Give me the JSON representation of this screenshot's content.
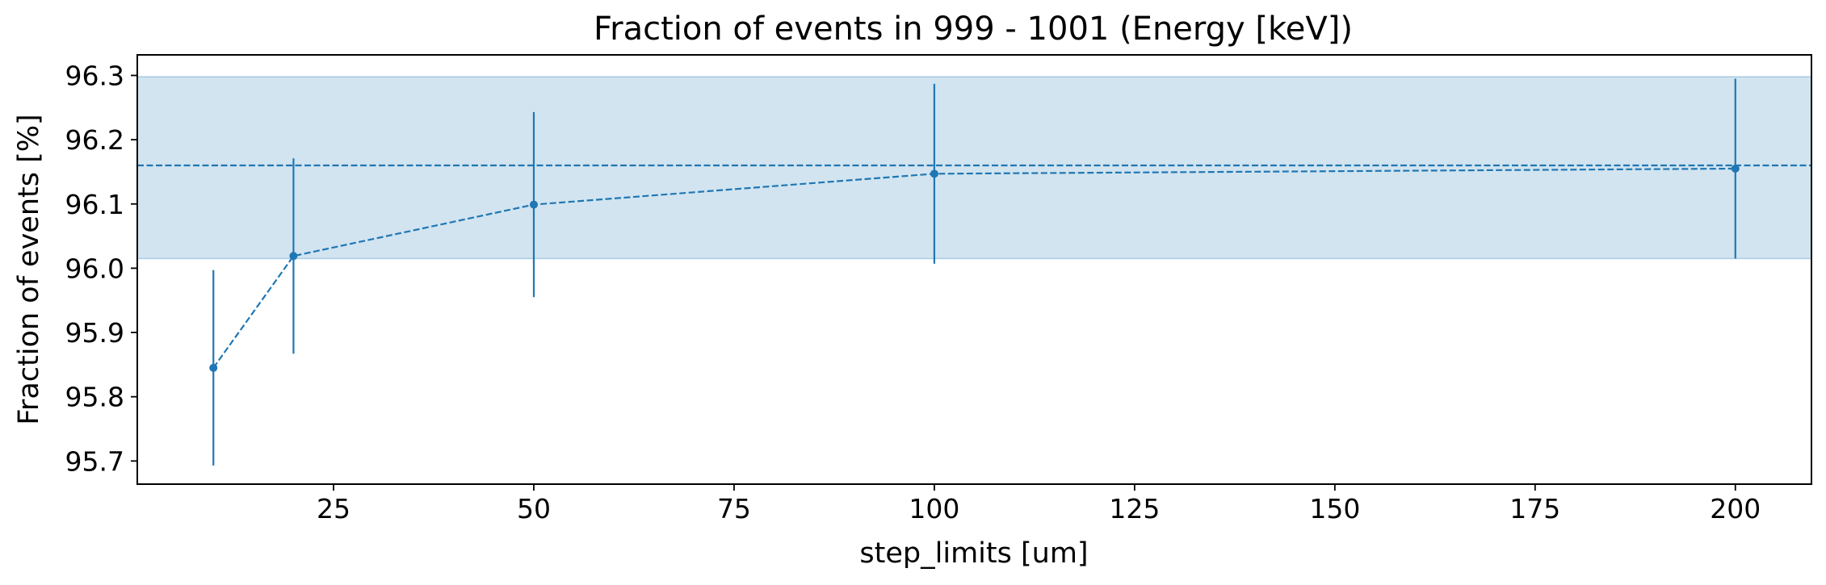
{
  "chart_data": {
    "type": "line",
    "title": "Fraction of events in 999 - 1001 (Energy [keV])",
    "xlabel": "step_limits [um]",
    "ylabel": "Fraction of events [%]",
    "xlim": [
      0.5,
      209.5
    ],
    "ylim": [
      95.664,
      96.332
    ],
    "xticks": [
      25,
      50,
      75,
      100,
      125,
      150,
      175,
      200
    ],
    "yticks": [
      95.7,
      95.8,
      95.9,
      96.0,
      96.1,
      96.2,
      96.3
    ],
    "series": [
      {
        "x": [
          10,
          20,
          50,
          100,
          200
        ],
        "y": [
          95.845,
          96.019,
          96.099,
          96.147,
          96.155
        ],
        "yerr": [
          0.152,
          0.152,
          0.144,
          0.14,
          0.14
        ],
        "color": "#1f77b4",
        "linestyle": "dashed",
        "marker": "circle"
      }
    ],
    "reference": {
      "value": 96.16,
      "band": [
        96.015,
        96.298
      ],
      "color": "#1f77b4",
      "linestyle": "dashed"
    },
    "grid": false,
    "legend": false
  }
}
